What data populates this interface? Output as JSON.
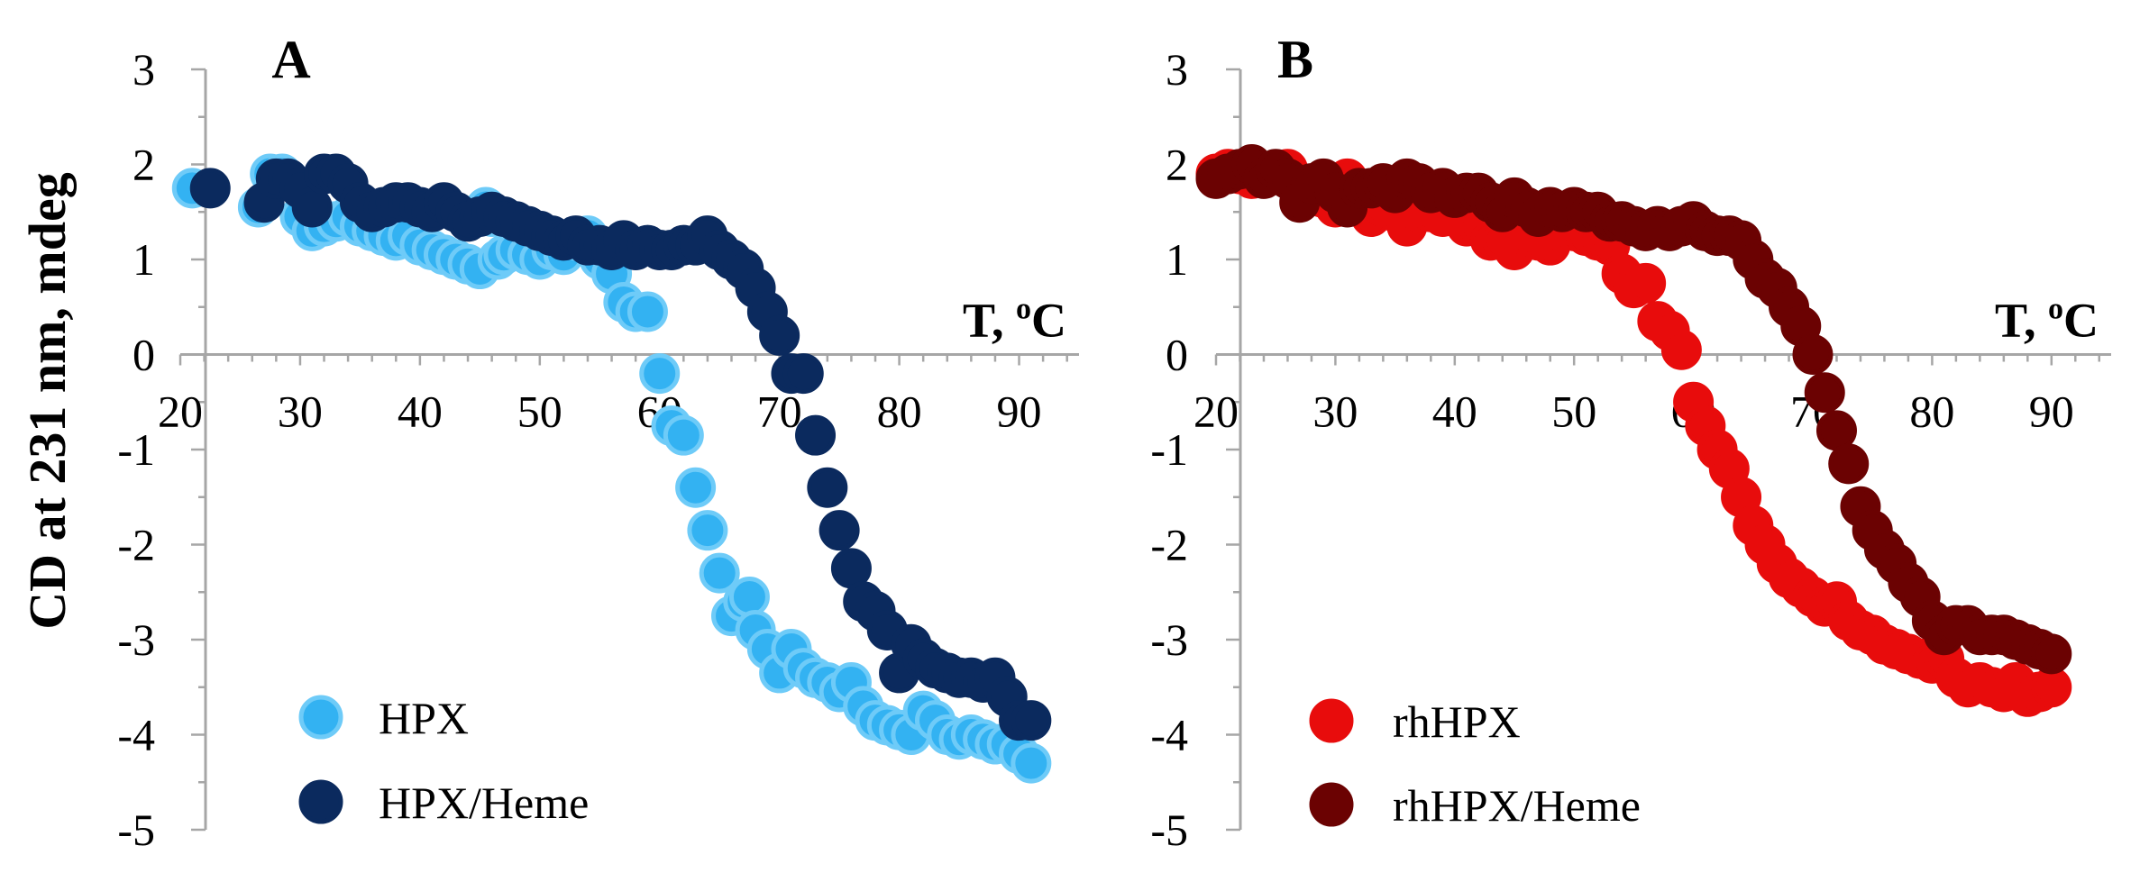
{
  "chart_data": [
    {
      "type": "scatter",
      "panel_label": "A",
      "x_axis_title": "T, ",
      "x_axis_sup": "o",
      "x_axis_unit": "C",
      "xlim": [
        20,
        95
      ],
      "ylim": [
        -5,
        3
      ],
      "xticks": [
        20,
        30,
        40,
        50,
        60,
        70,
        80,
        90
      ],
      "yticks": [
        3,
        2,
        1,
        0,
        -1,
        -2,
        -3,
        -4,
        -5
      ],
      "legend_position": "bottom-left",
      "series": [
        {
          "name": "HPX",
          "color": "#33b2f2",
          "stroke": "#6ecbf8",
          "x": [
            21,
            26.5,
            27.5,
            28.5,
            29,
            30,
            31,
            32,
            33,
            34,
            35,
            36,
            37,
            38,
            39,
            40,
            41,
            42,
            43,
            44,
            45,
            45.5,
            46,
            46.5,
            47,
            48,
            49,
            50,
            51,
            52,
            53,
            54,
            55,
            56,
            57,
            58,
            59,
            60,
            61,
            62,
            63,
            64,
            65,
            66,
            67,
            67.5,
            68,
            69,
            70,
            71,
            72,
            73,
            74,
            75,
            76,
            77,
            78,
            79,
            80,
            81,
            82,
            83,
            84,
            85,
            86,
            87,
            88,
            89,
            90,
            91
          ],
          "y": [
            1.75,
            1.55,
            1.9,
            1.9,
            1.85,
            1.45,
            1.3,
            1.35,
            1.4,
            1.45,
            1.35,
            1.3,
            1.25,
            1.2,
            1.25,
            1.15,
            1.1,
            1.05,
            1.0,
            0.95,
            0.9,
            1.55,
            1.45,
            1.0,
            1.05,
            1.1,
            1.05,
            1.0,
            1.1,
            1.05,
            1.2,
            1.25,
            1.0,
            0.85,
            0.55,
            0.45,
            0.45,
            -0.2,
            -0.75,
            -0.85,
            -1.4,
            -1.85,
            -2.3,
            -2.75,
            -2.6,
            -2.55,
            -2.9,
            -3.1,
            -3.35,
            -3.1,
            -3.3,
            -3.4,
            -3.45,
            -3.55,
            -3.45,
            -3.7,
            -3.85,
            -3.9,
            -3.95,
            -4.0,
            -3.75,
            -3.85,
            -4.0,
            -4.05,
            -4.0,
            -4.05,
            -4.1,
            -4.1,
            -4.2,
            -4.3
          ]
        },
        {
          "name": "HPX/Heme",
          "color": "#0b2a5e",
          "stroke": "#0b2a5e",
          "x": [
            22.5,
            27,
            28,
            29,
            30,
            31,
            32,
            33,
            34,
            35,
            36,
            37,
            38,
            39,
            40,
            41,
            42,
            43,
            44,
            45,
            46,
            47,
            48,
            49,
            50,
            51,
            52,
            53,
            54,
            55,
            56,
            57,
            58,
            59,
            60,
            61,
            62,
            63,
            64,
            65,
            66,
            67,
            68,
            69,
            70,
            71,
            72,
            73,
            74,
            75,
            76,
            77,
            78,
            79,
            80,
            81,
            82,
            83,
            84,
            85,
            86,
            87,
            88,
            89,
            90,
            91
          ],
          "y": [
            1.75,
            1.6,
            1.85,
            1.85,
            1.75,
            1.55,
            1.9,
            1.9,
            1.8,
            1.6,
            1.5,
            1.55,
            1.6,
            1.6,
            1.55,
            1.5,
            1.6,
            1.5,
            1.4,
            1.45,
            1.5,
            1.45,
            1.4,
            1.35,
            1.3,
            1.25,
            1.2,
            1.25,
            1.15,
            1.15,
            1.1,
            1.2,
            1.1,
            1.15,
            1.1,
            1.1,
            1.15,
            1.15,
            1.25,
            1.1,
            1.0,
            0.9,
            0.7,
            0.45,
            0.2,
            -0.2,
            -0.2,
            -0.85,
            -1.4,
            -1.85,
            -2.25,
            -2.6,
            -2.7,
            -2.9,
            -3.35,
            -3.05,
            -3.2,
            -3.3,
            -3.35,
            -3.4,
            -3.4,
            -3.45,
            -3.4,
            -3.6,
            -3.85,
            -3.85
          ]
        }
      ]
    },
    {
      "type": "scatter",
      "panel_label": "B",
      "x_axis_title": "T, ",
      "x_axis_sup": "o",
      "x_axis_unit": "C",
      "xlim": [
        20,
        95
      ],
      "ylim": [
        -5,
        3
      ],
      "xticks": [
        20,
        30,
        40,
        50,
        60,
        70,
        80,
        90
      ],
      "yticks": [
        3,
        2,
        1,
        0,
        -1,
        -2,
        -3,
        -4,
        -5
      ],
      "legend_position": "bottom-left",
      "series": [
        {
          "name": "rhHPX",
          "color": "#e80c0c",
          "stroke": "#e80c0c",
          "x": [
            20,
            21,
            22,
            23,
            24,
            25,
            26,
            27,
            28,
            29,
            30,
            31,
            32,
            33,
            34,
            35,
            36,
            37,
            38,
            39,
            40,
            41,
            42,
            43,
            44,
            45,
            46,
            47,
            48,
            49,
            50,
            51,
            52,
            53,
            54,
            55,
            56,
            57,
            58,
            59,
            60,
            61,
            62,
            63,
            64,
            65,
            66,
            67,
            68,
            69,
            70,
            71,
            72,
            73,
            74,
            75,
            76,
            77,
            78,
            79,
            80,
            81,
            82,
            83,
            84,
            85,
            86,
            87,
            88,
            89,
            90
          ],
          "y": [
            1.9,
            1.95,
            1.9,
            1.85,
            1.9,
            1.9,
            1.95,
            1.8,
            1.7,
            1.65,
            1.55,
            1.85,
            1.6,
            1.45,
            1.55,
            1.5,
            1.35,
            1.5,
            1.5,
            1.45,
            1.45,
            1.35,
            1.35,
            1.2,
            1.2,
            1.1,
            1.25,
            1.2,
            1.15,
            1.3,
            1.3,
            1.25,
            1.2,
            1.15,
            0.85,
            0.7,
            0.75,
            0.35,
            0.25,
            0.05,
            -0.5,
            -0.75,
            -1.0,
            -1.2,
            -1.5,
            -1.8,
            -2.0,
            -2.2,
            -2.35,
            -2.45,
            -2.55,
            -2.65,
            -2.6,
            -2.8,
            -2.9,
            -2.95,
            -3.05,
            -3.1,
            -3.15,
            -3.2,
            -3.25,
            -3.2,
            -3.4,
            -3.5,
            -3.45,
            -3.5,
            -3.55,
            -3.45,
            -3.6,
            -3.55,
            -3.5
          ]
        },
        {
          "name": "rhHPX/Heme",
          "color": "#6b0202",
          "stroke": "#6b0202",
          "x": [
            20,
            21,
            22,
            23,
            24,
            25,
            26,
            27,
            28,
            29,
            30,
            31,
            32,
            33,
            34,
            35,
            36,
            37,
            38,
            39,
            40,
            41,
            42,
            43,
            44,
            45,
            46,
            47,
            48,
            49,
            50,
            51,
            52,
            53,
            54,
            55,
            56,
            57,
            58,
            59,
            60,
            61,
            62,
            63,
            64,
            65,
            66,
            67,
            68,
            69,
            70,
            71,
            72,
            73,
            74,
            75,
            76,
            77,
            78,
            79,
            80,
            81,
            82,
            83,
            84,
            85,
            86,
            87,
            88,
            89,
            90
          ],
          "y": [
            1.85,
            1.9,
            1.95,
            2.0,
            1.85,
            1.95,
            1.85,
            1.6,
            1.8,
            1.85,
            1.7,
            1.55,
            1.75,
            1.75,
            1.8,
            1.7,
            1.85,
            1.8,
            1.7,
            1.75,
            1.65,
            1.7,
            1.7,
            1.6,
            1.5,
            1.65,
            1.55,
            1.45,
            1.55,
            1.5,
            1.55,
            1.5,
            1.5,
            1.4,
            1.4,
            1.35,
            1.3,
            1.35,
            1.3,
            1.35,
            1.4,
            1.3,
            1.25,
            1.25,
            1.2,
            1.0,
            0.8,
            0.7,
            0.5,
            0.3,
            0.0,
            -0.4,
            -0.8,
            -1.15,
            -1.6,
            -1.85,
            -2.05,
            -2.2,
            -2.4,
            -2.55,
            -2.8,
            -2.95,
            -2.85,
            -2.85,
            -2.95,
            -2.95,
            -2.95,
            -3.0,
            -3.05,
            -3.1,
            -3.15
          ]
        }
      ]
    }
  ],
  "shared_y_label": "CD at 231 nm,  mdeg"
}
